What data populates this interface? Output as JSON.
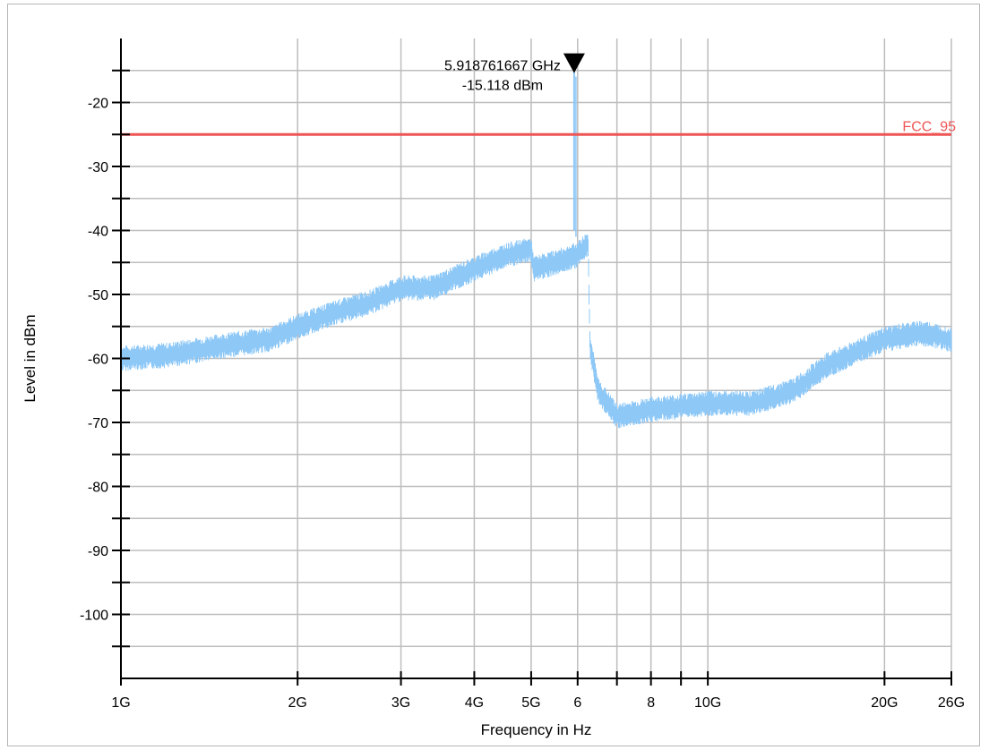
{
  "chart_data": {
    "type": "line",
    "xlabel": "Frequency in Hz",
    "ylabel": "Level in dBm",
    "x_scale": "log",
    "xlim_hz": [
      1000000000,
      26000000000
    ],
    "ylim_dbm": [
      -110,
      -10
    ],
    "x_tick_labels": [
      {
        "value_hz": 1000000000,
        "label": "1G"
      },
      {
        "value_hz": 2000000000,
        "label": "2G"
      },
      {
        "value_hz": 3000000000,
        "label": "3G"
      },
      {
        "value_hz": 4000000000,
        "label": "4G"
      },
      {
        "value_hz": 5000000000,
        "label": "5G"
      },
      {
        "value_hz": 6000000000,
        "label": "6"
      },
      {
        "value_hz": 8000000000,
        "label": "8"
      },
      {
        "value_hz": 10000000000,
        "label": "10G"
      },
      {
        "value_hz": 20000000000,
        "label": "20G"
      },
      {
        "value_hz": 26000000000,
        "label": "26G"
      }
    ],
    "x_gridlines_hz": [
      1000000000,
      2000000000,
      3000000000,
      4000000000,
      5000000000,
      6000000000,
      7000000000,
      8000000000,
      9000000000,
      10000000000,
      20000000000,
      26000000000
    ],
    "y_tick_labels": [
      {
        "value": -20,
        "label": "-20"
      },
      {
        "value": -30,
        "label": "-30"
      },
      {
        "value": -40,
        "label": "-40"
      },
      {
        "value": -50,
        "label": "-50"
      },
      {
        "value": -60,
        "label": "-60"
      },
      {
        "value": -70,
        "label": "-70"
      },
      {
        "value": -80,
        "label": "-80"
      },
      {
        "value": -90,
        "label": "-90"
      },
      {
        "value": -100,
        "label": "-100"
      }
    ],
    "y_gridlines": [
      -15,
      -20,
      -25,
      -30,
      -35,
      -40,
      -45,
      -50,
      -55,
      -60,
      -65,
      -70,
      -75,
      -80,
      -85,
      -90,
      -95,
      -100,
      -105
    ],
    "grid": true,
    "series": [
      {
        "color": "#8ec8f7",
        "noise_band_db": 4,
        "points": [
          {
            "x_hz": 1000000000,
            "y": -60
          },
          {
            "x_hz": 1200000000,
            "y": -59.5
          },
          {
            "x_hz": 1500000000,
            "y": -58
          },
          {
            "x_hz": 1800000000,
            "y": -57
          },
          {
            "x_hz": 2000000000,
            "y": -55
          },
          {
            "x_hz": 2300000000,
            "y": -53
          },
          {
            "x_hz": 2700000000,
            "y": -51
          },
          {
            "x_hz": 3000000000,
            "y": -49
          },
          {
            "x_hz": 3400000000,
            "y": -49
          },
          {
            "x_hz": 4000000000,
            "y": -46
          },
          {
            "x_hz": 4500000000,
            "y": -44
          },
          {
            "x_hz": 5000000000,
            "y": -43
          },
          {
            "x_hz": 5050000000,
            "y": -46
          },
          {
            "x_hz": 5500000000,
            "y": -45
          },
          {
            "x_hz": 5900000000,
            "y": -44
          },
          {
            "x_hz": 5918761667,
            "y": -15.118
          },
          {
            "x_hz": 5950000000,
            "y": -44
          },
          {
            "x_hz": 6250000000,
            "y": -42
          },
          {
            "x_hz": 6300000000,
            "y": -58
          },
          {
            "x_hz": 6500000000,
            "y": -65
          },
          {
            "x_hz": 7000000000,
            "y": -69
          },
          {
            "x_hz": 8000000000,
            "y": -68
          },
          {
            "x_hz": 10000000000,
            "y": -67
          },
          {
            "x_hz": 12000000000,
            "y": -67
          },
          {
            "x_hz": 14000000000,
            "y": -65
          },
          {
            "x_hz": 16000000000,
            "y": -61
          },
          {
            "x_hz": 20000000000,
            "y": -57
          },
          {
            "x_hz": 23000000000,
            "y": -56
          },
          {
            "x_hz": 26000000000,
            "y": -57
          }
        ]
      }
    ],
    "limit_line": {
      "label": "FCC_95",
      "value": -25,
      "color": "#ef5454"
    },
    "marker": {
      "x_hz": 5918761667,
      "y": -15.118,
      "freq_label": "5.918761667 GHz",
      "level_label": "-15.118 dBm"
    }
  }
}
